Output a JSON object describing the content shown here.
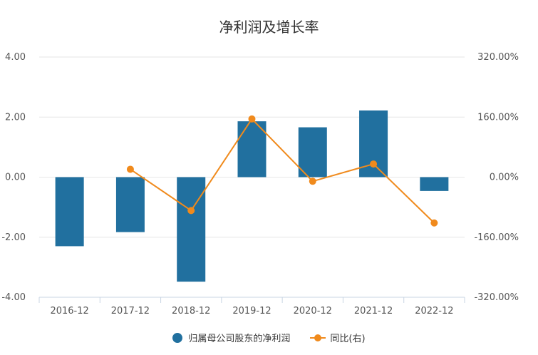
{
  "chart_data": {
    "type": "bar",
    "title": "净利润及增长率",
    "categories": [
      "2016-12",
      "2017-12",
      "2018-12",
      "2019-12",
      "2020-12",
      "2021-12",
      "2022-12"
    ],
    "series": [
      {
        "name": "归属母公司股东的净利润",
        "type": "bar",
        "axis": "left",
        "color": "#21709f",
        "values": [
          -2.3,
          -1.83,
          -3.48,
          1.86,
          1.66,
          2.22,
          -0.46
        ]
      },
      {
        "name": "同比(右)",
        "type": "line",
        "axis": "right",
        "color": "#f08a1c",
        "values": [
          null,
          21.0,
          -89.0,
          155.0,
          -11.0,
          35.0,
          -122.0
        ]
      }
    ],
    "yAxisLeft": {
      "min": -4,
      "max": 4,
      "ticks": [
        "4.00",
        "2.00",
        "0.00",
        "-2.00",
        "-4.00"
      ]
    },
    "yAxisRight": {
      "min": -320,
      "max": 320,
      "ticks": [
        "320.00%",
        "160.00%",
        "0.00%",
        "-160.00%",
        "-320.00%"
      ]
    },
    "legend": [
      "归属母公司股东的净利润",
      "同比(右)"
    ]
  }
}
